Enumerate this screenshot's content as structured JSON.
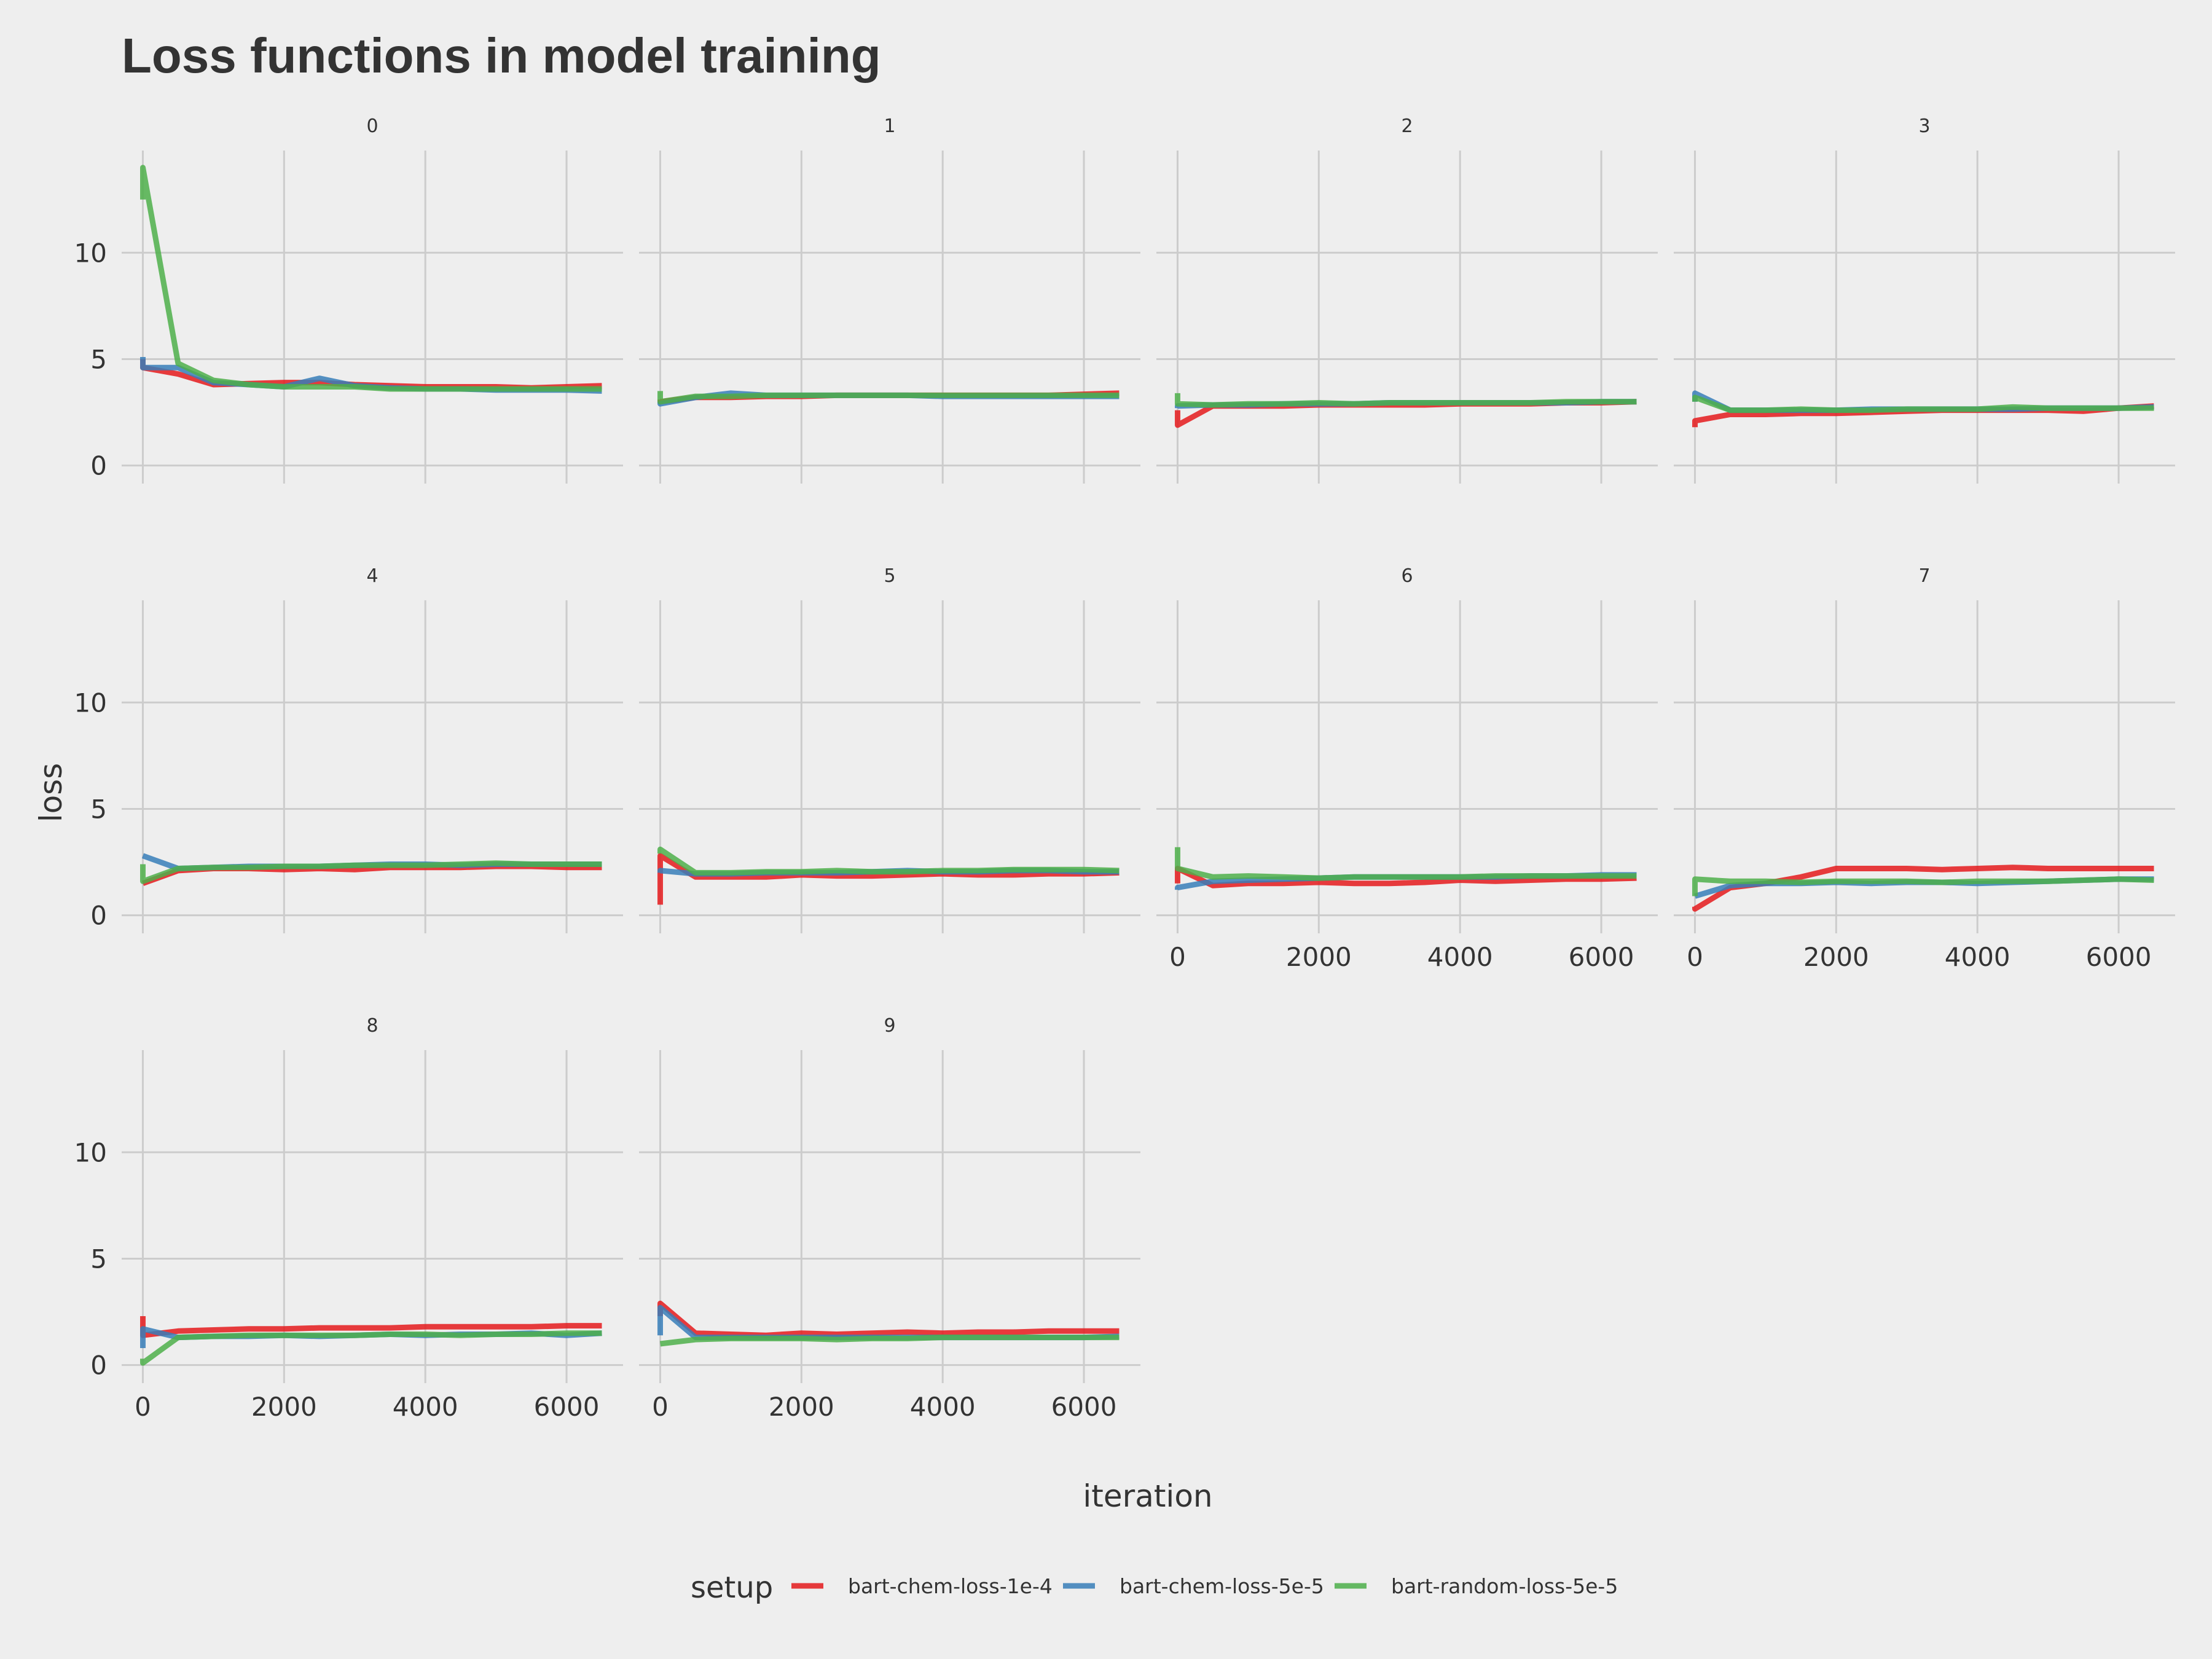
{
  "chart_data": {
    "type": "line",
    "title": "Loss functions in model training",
    "xlabel": "iteration",
    "ylabel": "loss",
    "xlim": [
      -300,
      6800
    ],
    "ylim": [
      -0.5,
      14.8
    ],
    "x_ticks": [
      0,
      2000,
      4000,
      6000
    ],
    "y_ticks": [
      0,
      5,
      10
    ],
    "legend": {
      "title": "setup",
      "position": "bottom",
      "entries": [
        "bart-chem-loss-1e-4",
        "bart-chem-loss-5e-5",
        "bart-random-loss-5e-5"
      ]
    },
    "colors": {
      "bart-chem-loss-1e-4": "#e41a1c",
      "bart-chem-loss-5e-5": "#377eb8",
      "bart-random-loss-5e-5": "#4daf4a"
    },
    "x": [
      0,
      500,
      1000,
      1500,
      2000,
      2500,
      3000,
      3500,
      4000,
      4500,
      5000,
      5500,
      6000,
      6500
    ],
    "panels": [
      {
        "label": "0",
        "series": [
          {
            "name": "bart-chem-loss-1e-4",
            "start": [
              5.0,
              4.6
            ],
            "values": [
              4.6,
              4.3,
              3.8,
              3.85,
              3.9,
              3.9,
              3.8,
              3.75,
              3.7,
              3.7,
              3.7,
              3.65,
              3.7,
              3.75
            ]
          },
          {
            "name": "bart-chem-loss-5e-5",
            "start": [
              5.1,
              4.6
            ],
            "values": [
              4.6,
              4.6,
              3.9,
              3.8,
              3.7,
              4.1,
              3.75,
              3.65,
              3.6,
              3.6,
              3.55,
              3.55,
              3.55,
              3.5
            ]
          },
          {
            "name": "bart-random-loss-5e-5",
            "start": [
              12.5,
              14.0
            ],
            "values": [
              14.0,
              4.8,
              4.0,
              3.8,
              3.7,
              3.7,
              3.7,
              3.6,
              3.6,
              3.6,
              3.6,
              3.6,
              3.6,
              3.6
            ]
          }
        ]
      },
      {
        "label": "1",
        "series": [
          {
            "name": "bart-chem-loss-1e-4",
            "start": [
              3.1,
              3.0
            ],
            "values": [
              3.0,
              3.2,
              3.2,
              3.25,
              3.25,
              3.3,
              3.3,
              3.3,
              3.3,
              3.3,
              3.3,
              3.3,
              3.35,
              3.4
            ]
          },
          {
            "name": "bart-chem-loss-5e-5",
            "start": [
              3.0,
              2.9
            ],
            "values": [
              2.9,
              3.2,
              3.4,
              3.3,
              3.3,
              3.3,
              3.3,
              3.3,
              3.25,
              3.25,
              3.25,
              3.25,
              3.25,
              3.25
            ]
          },
          {
            "name": "bart-random-loss-5e-5",
            "start": [
              3.5,
              3.0
            ],
            "values": [
              3.0,
              3.25,
              3.25,
              3.3,
              3.3,
              3.3,
              3.3,
              3.3,
              3.3,
              3.3,
              3.3,
              3.3,
              3.3,
              3.3
            ]
          }
        ]
      },
      {
        "label": "2",
        "series": [
          {
            "name": "bart-chem-loss-1e-4",
            "start": [
              2.6,
              1.9
            ],
            "values": [
              1.9,
              2.8,
              2.8,
              2.8,
              2.85,
              2.85,
              2.85,
              2.85,
              2.9,
              2.9,
              2.9,
              2.95,
              2.95,
              3.0
            ]
          },
          {
            "name": "bart-chem-loss-5e-5",
            "start": [
              2.7,
              2.8
            ],
            "values": [
              2.8,
              2.85,
              2.85,
              2.9,
              2.9,
              2.9,
              2.95,
              2.95,
              2.95,
              2.95,
              2.95,
              2.95,
              3.0,
              3.0
            ]
          },
          {
            "name": "bart-random-loss-5e-5",
            "start": [
              3.4,
              2.9
            ],
            "values": [
              2.9,
              2.85,
              2.9,
              2.9,
              2.95,
              2.9,
              2.95,
              2.95,
              2.95,
              2.95,
              2.95,
              3.0,
              3.0,
              3.0
            ]
          }
        ]
      },
      {
        "label": "3",
        "series": [
          {
            "name": "bart-chem-loss-1e-4",
            "start": [
              1.8,
              2.1
            ],
            "values": [
              2.1,
              2.4,
              2.4,
              2.45,
              2.45,
              2.5,
              2.55,
              2.6,
              2.6,
              2.6,
              2.6,
              2.55,
              2.7,
              2.8
            ]
          },
          {
            "name": "bart-chem-loss-5e-5",
            "start": [
              3.0,
              3.4
            ],
            "values": [
              3.4,
              2.6,
              2.6,
              2.6,
              2.6,
              2.65,
              2.65,
              2.65,
              2.65,
              2.65,
              2.7,
              2.7,
              2.7,
              2.75
            ]
          },
          {
            "name": "bart-random-loss-5e-5",
            "start": [
              3.0,
              3.2
            ],
            "values": [
              3.2,
              2.6,
              2.6,
              2.65,
              2.6,
              2.6,
              2.65,
              2.65,
              2.65,
              2.75,
              2.7,
              2.7,
              2.7,
              2.7
            ]
          }
        ]
      },
      {
        "label": "4",
        "series": [
          {
            "name": "bart-chem-loss-1e-4",
            "start": [
              1.5,
              1.5
            ],
            "values": [
              1.5,
              2.1,
              2.2,
              2.2,
              2.15,
              2.2,
              2.15,
              2.25,
              2.25,
              2.25,
              2.3,
              2.3,
              2.25,
              2.25
            ]
          },
          {
            "name": "bart-chem-loss-5e-5",
            "start": [
              2.8,
              2.8
            ],
            "values": [
              2.8,
              2.2,
              2.25,
              2.3,
              2.3,
              2.3,
              2.35,
              2.4,
              2.4,
              2.35,
              2.4,
              2.4,
              2.4,
              2.4
            ]
          },
          {
            "name": "bart-random-loss-5e-5",
            "start": [
              2.4,
              1.6
            ],
            "values": [
              1.6,
              2.2,
              2.25,
              2.25,
              2.3,
              2.3,
              2.35,
              2.35,
              2.35,
              2.4,
              2.45,
              2.4,
              2.4,
              2.4
            ]
          }
        ]
      },
      {
        "label": "5",
        "series": [
          {
            "name": "bart-chem-loss-1e-4",
            "start": [
              0.5,
              2.8
            ],
            "values": [
              2.8,
              1.8,
              1.8,
              1.8,
              1.9,
              1.85,
              1.85,
              1.9,
              1.95,
              1.9,
              1.9,
              1.95,
              1.95,
              2.0
            ]
          },
          {
            "name": "bart-chem-loss-5e-5",
            "start": [
              2.0,
              2.1
            ],
            "values": [
              2.1,
              1.95,
              1.95,
              2.0,
              2.0,
              2.0,
              2.05,
              2.1,
              2.05,
              2.05,
              2.1,
              2.1,
              2.05,
              2.05
            ]
          },
          {
            "name": "bart-random-loss-5e-5",
            "start": [
              2.9,
              3.1
            ],
            "values": [
              3.1,
              2.0,
              2.0,
              2.05,
              2.05,
              2.1,
              2.05,
              2.05,
              2.1,
              2.1,
              2.15,
              2.15,
              2.15,
              2.1
            ]
          }
        ]
      },
      {
        "label": "6",
        "series": [
          {
            "name": "bart-chem-loss-1e-4",
            "start": [
              1.5,
              2.2
            ],
            "values": [
              2.2,
              1.4,
              1.5,
              1.5,
              1.55,
              1.5,
              1.5,
              1.55,
              1.65,
              1.6,
              1.65,
              1.7,
              1.7,
              1.75
            ]
          },
          {
            "name": "bart-chem-loss-5e-5",
            "start": [
              1.2,
              1.3
            ],
            "values": [
              1.3,
              1.6,
              1.65,
              1.7,
              1.75,
              1.8,
              1.8,
              1.8,
              1.8,
              1.8,
              1.85,
              1.85,
              1.9,
              1.9
            ]
          },
          {
            "name": "bart-random-loss-5e-5",
            "start": [
              3.2,
              2.2
            ],
            "values": [
              2.2,
              1.8,
              1.85,
              1.8,
              1.75,
              1.8,
              1.8,
              1.8,
              1.8,
              1.85,
              1.85,
              1.85,
              1.85,
              1.85
            ]
          }
        ]
      },
      {
        "label": "7",
        "series": [
          {
            "name": "bart-chem-loss-1e-4",
            "start": [
              0.4,
              0.3
            ],
            "values": [
              0.3,
              1.3,
              1.5,
              1.8,
              2.2,
              2.2,
              2.2,
              2.15,
              2.2,
              2.25,
              2.2,
              2.2,
              2.2,
              2.2
            ]
          },
          {
            "name": "bart-chem-loss-5e-5",
            "start": [
              0.9,
              0.9
            ],
            "values": [
              0.9,
              1.4,
              1.5,
              1.5,
              1.55,
              1.5,
              1.55,
              1.55,
              1.5,
              1.55,
              1.6,
              1.65,
              1.7,
              1.7
            ]
          },
          {
            "name": "bart-random-loss-5e-5",
            "start": [
              0.9,
              1.7
            ],
            "values": [
              1.7,
              1.6,
              1.6,
              1.55,
              1.6,
              1.6,
              1.6,
              1.55,
              1.6,
              1.6,
              1.6,
              1.65,
              1.7,
              1.65
            ]
          }
        ]
      },
      {
        "label": "8",
        "series": [
          {
            "name": "bart-chem-loss-1e-4",
            "start": [
              2.3,
              1.4
            ],
            "values": [
              1.4,
              1.6,
              1.65,
              1.7,
              1.7,
              1.75,
              1.75,
              1.75,
              1.8,
              1.8,
              1.8,
              1.8,
              1.85,
              1.85
            ]
          },
          {
            "name": "bart-chem-loss-5e-5",
            "start": [
              0.8,
              1.7
            ],
            "values": [
              1.7,
              1.3,
              1.35,
              1.35,
              1.4,
              1.35,
              1.4,
              1.45,
              1.4,
              1.45,
              1.45,
              1.5,
              1.4,
              1.5
            ]
          },
          {
            "name": "bart-random-loss-5e-5",
            "start": [
              0.3,
              0.1
            ],
            "values": [
              0.1,
              1.3,
              1.35,
              1.4,
              1.4,
              1.4,
              1.4,
              1.45,
              1.45,
              1.4,
              1.45,
              1.45,
              1.5,
              1.5
            ]
          }
        ]
      },
      {
        "label": "9",
        "series": [
          {
            "name": "bart-chem-loss-1e-4",
            "start": [
              2.3,
              2.9
            ],
            "values": [
              2.9,
              1.5,
              1.45,
              1.4,
              1.5,
              1.45,
              1.5,
              1.55,
              1.5,
              1.55,
              1.55,
              1.6,
              1.6,
              1.6
            ]
          },
          {
            "name": "bart-chem-loss-5e-5",
            "start": [
              1.4,
              2.7
            ],
            "values": [
              2.7,
              1.3,
              1.3,
              1.3,
              1.3,
              1.3,
              1.3,
              1.3,
              1.3,
              1.3,
              1.3,
              1.3,
              1.3,
              1.35
            ]
          },
          {
            "name": "bart-random-loss-5e-5",
            "start": [
              1.0,
              1.0
            ],
            "values": [
              1.0,
              1.2,
              1.25,
              1.25,
              1.25,
              1.2,
              1.25,
              1.25,
              1.3,
              1.3,
              1.3,
              1.3,
              1.3,
              1.3
            ]
          }
        ]
      }
    ]
  }
}
